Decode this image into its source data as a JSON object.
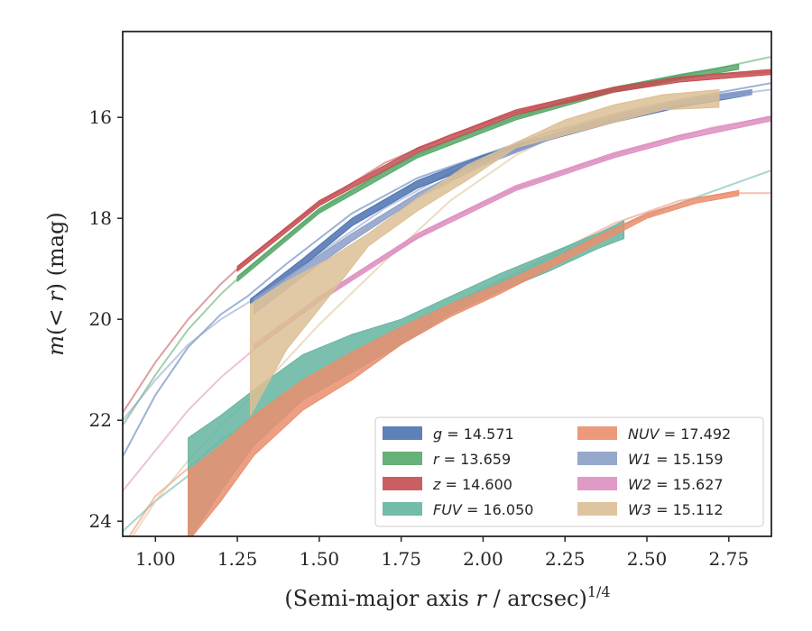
{
  "chart_data": {
    "type": "line",
    "xlabel": "(Semi-major axis r / arcsec)",
    "xlabel_parts": {
      "pre": "(Semi-major axis ",
      "var": "r",
      "post": " / arcsec)",
      "sup": "1/4"
    },
    "ylabel_parts": {
      "var": "m",
      "mid": "(< ",
      "var2": "r",
      "post": ") (mag)"
    },
    "xlim": [
      0.9,
      2.88
    ],
    "ylim": [
      24.3,
      14.3
    ],
    "y_inverted": true,
    "xticks": [
      1.0,
      1.25,
      1.5,
      1.75,
      2.0,
      2.25,
      2.5,
      2.75
    ],
    "xtick_labels": [
      "1.00",
      "1.25",
      "1.50",
      "1.75",
      "2.00",
      "2.25",
      "2.50",
      "2.75"
    ],
    "yticks": [
      16,
      18,
      20,
      22,
      24
    ],
    "ytick_labels": [
      "16",
      "18",
      "20",
      "22",
      "24"
    ],
    "legend_position": "lower-right",
    "series": [
      {
        "key": "g",
        "band": "g",
        "value": "14.571",
        "color": "#4c72b0",
        "model": [
          [
            0.9,
            22.72
          ],
          [
            1.0,
            21.5
          ],
          [
            1.1,
            20.55
          ],
          [
            1.2,
            19.9
          ],
          [
            1.28,
            19.55
          ],
          [
            1.4,
            18.9
          ],
          [
            1.6,
            17.9
          ],
          [
            1.8,
            17.2
          ],
          [
            2.0,
            16.75
          ],
          [
            2.2,
            16.3
          ],
          [
            2.4,
            15.95
          ],
          [
            2.6,
            15.65
          ],
          [
            2.88,
            15.32
          ]
        ],
        "band_data": [
          [
            1.29,
            19.6,
            19.7
          ],
          [
            1.45,
            18.8,
            18.95
          ],
          [
            1.6,
            18.0,
            18.15
          ],
          [
            1.8,
            17.25,
            17.4
          ],
          [
            2.0,
            16.75,
            16.9
          ],
          [
            2.2,
            16.35,
            16.45
          ],
          [
            2.4,
            16.0,
            16.1
          ],
          [
            2.6,
            15.7,
            15.8
          ],
          [
            2.82,
            15.45,
            15.55
          ]
        ]
      },
      {
        "key": "r",
        "band": "r",
        "value": "13.659",
        "color": "#55a868",
        "model": [
          [
            0.9,
            22.1
          ],
          [
            1.0,
            21.1
          ],
          [
            1.1,
            20.2
          ],
          [
            1.2,
            19.5
          ],
          [
            1.3,
            18.9
          ],
          [
            1.5,
            17.85
          ],
          [
            1.7,
            17.05
          ],
          [
            1.9,
            16.45
          ],
          [
            2.1,
            16.0
          ],
          [
            2.3,
            15.6
          ],
          [
            2.5,
            15.3
          ],
          [
            2.7,
            15.05
          ],
          [
            2.88,
            14.8
          ]
        ],
        "band_data": [
          [
            1.25,
            19.15,
            19.25
          ],
          [
            1.5,
            17.8,
            17.9
          ],
          [
            1.8,
            16.7,
            16.8
          ],
          [
            2.1,
            15.95,
            16.05
          ],
          [
            2.4,
            15.4,
            15.5
          ],
          [
            2.6,
            15.15,
            15.25
          ],
          [
            2.78,
            14.95,
            15.05
          ]
        ]
      },
      {
        "key": "z",
        "band": "z",
        "value": "14.600",
        "color": "#c44e52",
        "model": [
          [
            0.9,
            21.85
          ],
          [
            1.0,
            20.85
          ],
          [
            1.1,
            20.0
          ],
          [
            1.2,
            19.3
          ],
          [
            1.3,
            18.7
          ],
          [
            1.5,
            17.7
          ],
          [
            1.7,
            16.9
          ],
          [
            1.9,
            16.35
          ],
          [
            2.1,
            15.9
          ],
          [
            2.3,
            15.55
          ],
          [
            2.5,
            15.3
          ],
          [
            2.7,
            15.15
          ],
          [
            2.88,
            15.1
          ]
        ],
        "band_data": [
          [
            1.25,
            18.95,
            19.05
          ],
          [
            1.5,
            17.65,
            17.75
          ],
          [
            1.8,
            16.6,
            16.7
          ],
          [
            2.1,
            15.85,
            15.95
          ],
          [
            2.4,
            15.4,
            15.5
          ],
          [
            2.6,
            15.2,
            15.3
          ],
          [
            2.88,
            15.05,
            15.15
          ]
        ]
      },
      {
        "key": "fuv",
        "band": "FUV",
        "value": "16.050",
        "color": "#64b5a0",
        "model": [
          [
            0.9,
            24.2
          ],
          [
            1.0,
            23.6
          ],
          [
            1.2,
            22.6
          ],
          [
            1.4,
            21.6
          ],
          [
            1.6,
            20.8
          ],
          [
            1.8,
            20.1
          ],
          [
            2.0,
            19.45
          ],
          [
            2.2,
            18.8
          ],
          [
            2.4,
            18.2
          ],
          [
            2.6,
            17.7
          ],
          [
            2.88,
            17.05
          ]
        ],
        "band_data": [
          [
            1.1,
            22.35,
            24.4
          ],
          [
            1.2,
            21.9,
            23.4
          ],
          [
            1.3,
            21.4,
            22.5
          ],
          [
            1.45,
            20.7,
            21.6
          ],
          [
            1.6,
            20.3,
            21.05
          ],
          [
            1.75,
            20.0,
            20.5
          ],
          [
            1.9,
            19.55,
            19.9
          ],
          [
            2.05,
            19.1,
            19.45
          ],
          [
            2.2,
            18.7,
            19.05
          ],
          [
            2.35,
            18.3,
            18.6
          ],
          [
            2.43,
            18.05,
            18.4
          ]
        ]
      },
      {
        "key": "nuv",
        "band": "NUV",
        "value": "17.492",
        "color": "#ea8e6e",
        "model": [
          [
            0.9,
            24.5
          ],
          [
            1.0,
            23.5
          ],
          [
            1.2,
            22.4
          ],
          [
            1.4,
            21.5
          ],
          [
            1.6,
            20.7
          ],
          [
            1.8,
            20.0
          ],
          [
            2.0,
            19.4
          ],
          [
            2.2,
            18.75
          ],
          [
            2.4,
            18.1
          ],
          [
            2.6,
            17.65
          ],
          [
            2.75,
            17.5
          ],
          [
            2.88,
            17.5
          ]
        ],
        "band_data": [
          [
            1.1,
            23.0,
            24.4
          ],
          [
            1.2,
            22.5,
            23.6
          ],
          [
            1.3,
            21.9,
            22.7
          ],
          [
            1.45,
            21.2,
            21.8
          ],
          [
            1.6,
            20.65,
            21.2
          ],
          [
            1.75,
            20.15,
            20.5
          ],
          [
            1.9,
            19.7,
            19.95
          ],
          [
            2.05,
            19.3,
            19.5
          ],
          [
            2.2,
            18.85,
            19.0
          ],
          [
            2.35,
            18.35,
            18.5
          ],
          [
            2.5,
            17.9,
            18.0
          ],
          [
            2.65,
            17.6,
            17.7
          ],
          [
            2.78,
            17.45,
            17.55
          ]
        ]
      },
      {
        "key": "w1",
        "band": "W1",
        "value": "15.159",
        "color": "#8c9fc8",
        "model": [
          [
            0.9,
            22.0
          ],
          [
            1.0,
            21.2
          ],
          [
            1.1,
            20.5
          ],
          [
            1.2,
            20.0
          ],
          [
            1.3,
            19.6
          ],
          [
            1.5,
            18.7
          ],
          [
            1.7,
            17.8
          ],
          [
            1.9,
            17.1
          ],
          [
            2.1,
            16.6
          ],
          [
            2.3,
            16.2
          ],
          [
            2.5,
            15.85
          ],
          [
            2.7,
            15.6
          ],
          [
            2.88,
            15.45
          ]
        ],
        "band_data": [
          [
            1.3,
            19.6,
            19.9
          ],
          [
            1.45,
            18.95,
            19.15
          ],
          [
            1.6,
            18.3,
            18.45
          ],
          [
            1.8,
            17.5,
            17.6
          ],
          [
            2.0,
            16.85,
            16.95
          ],
          [
            2.2,
            16.35,
            16.45
          ],
          [
            2.4,
            15.95,
            16.05
          ],
          [
            2.6,
            15.65,
            15.75
          ],
          [
            2.82,
            15.45,
            15.55
          ]
        ]
      },
      {
        "key": "w2",
        "band": "W2",
        "value": "15.627",
        "color": "#dd8fc0",
        "model": [
          [
            0.9,
            23.4
          ],
          [
            1.0,
            22.6
          ],
          [
            1.1,
            21.8
          ],
          [
            1.2,
            21.15
          ],
          [
            1.3,
            20.6
          ],
          [
            1.5,
            19.6
          ],
          [
            1.7,
            18.75
          ],
          [
            1.9,
            18.0
          ],
          [
            2.1,
            17.4
          ],
          [
            2.3,
            16.95
          ],
          [
            2.5,
            16.55
          ],
          [
            2.7,
            16.2
          ],
          [
            2.88,
            16.0
          ]
        ],
        "band_data": [
          [
            1.3,
            20.5,
            20.6
          ],
          [
            1.5,
            19.55,
            19.65
          ],
          [
            1.8,
            18.3,
            18.4
          ],
          [
            2.1,
            17.35,
            17.45
          ],
          [
            2.4,
            16.7,
            16.8
          ],
          [
            2.6,
            16.35,
            16.45
          ],
          [
            2.88,
            15.97,
            16.07
          ]
        ]
      },
      {
        "key": "w3",
        "band": "W3",
        "value": "15.112",
        "color": "#dcbf95",
        "model": [
          [
            0.93,
            24.3
          ],
          [
            1.0,
            23.6
          ],
          [
            1.1,
            22.8
          ],
          [
            1.2,
            22.1
          ],
          [
            1.3,
            21.5
          ],
          [
            1.5,
            20.1
          ],
          [
            1.7,
            18.85
          ],
          [
            1.9,
            17.65
          ],
          [
            2.1,
            16.75
          ],
          [
            2.3,
            16.1
          ],
          [
            2.5,
            15.75
          ],
          [
            2.72,
            15.55
          ]
        ],
        "band_data": [
          [
            1.29,
            19.7,
            21.9
          ],
          [
            1.4,
            19.25,
            20.6
          ],
          [
            1.53,
            18.8,
            19.55
          ],
          [
            1.65,
            18.3,
            18.55
          ],
          [
            1.8,
            17.6,
            17.85
          ],
          [
            1.95,
            16.95,
            17.25
          ],
          [
            2.1,
            16.5,
            16.6
          ],
          [
            2.25,
            16.05,
            16.35
          ],
          [
            2.4,
            15.75,
            16.1
          ],
          [
            2.55,
            15.55,
            15.85
          ],
          [
            2.72,
            15.45,
            15.8
          ]
        ]
      }
    ]
  }
}
